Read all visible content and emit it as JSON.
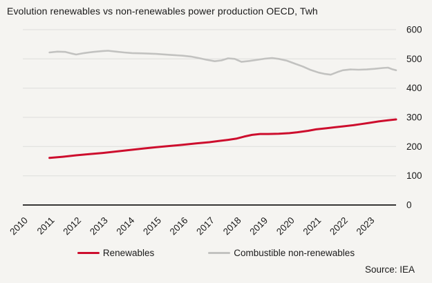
{
  "title": "Evolution renewables vs non-renewables power production OECD, Twh",
  "source": "Source: IEA",
  "legend": {
    "renewables": "Renewables",
    "non_renewables": "Combustible non-renewables"
  },
  "colors": {
    "background": "#f5f4f1",
    "text": "#1a1a1a",
    "grid": "#dddddb",
    "axis": "#1a1a1a",
    "renewables": "#cd0d2d",
    "non_renewables": "#c2c2c0"
  },
  "chart_data": {
    "type": "line",
    "title": "Evolution renewables vs non-renewables power production OECD, Twh",
    "unit": "Twh",
    "xlabel": "",
    "ylabel": "",
    "xlim": [
      2010,
      2024
    ],
    "ylim": [
      0,
      600
    ],
    "x_ticks": [
      2010,
      2011,
      2012,
      2013,
      2014,
      2015,
      2016,
      2017,
      2018,
      2019,
      2020,
      2021,
      2022,
      2023
    ],
    "y_ticks": [
      0,
      100,
      200,
      300,
      400,
      500,
      600
    ],
    "grid": "horizontal",
    "legend_position": "bottom",
    "series": [
      {
        "name": "Renewables",
        "color_key": "renewables",
        "width": 3,
        "points": [
          [
            2011.0,
            161
          ],
          [
            2011.5,
            165
          ],
          [
            2012.0,
            170
          ],
          [
            2012.5,
            174
          ],
          [
            2013.0,
            178
          ],
          [
            2013.5,
            183
          ],
          [
            2014.0,
            188
          ],
          [
            2014.5,
            193
          ],
          [
            2015.0,
            198
          ],
          [
            2015.5,
            202
          ],
          [
            2016.0,
            206
          ],
          [
            2016.5,
            211
          ],
          [
            2017.0,
            215
          ],
          [
            2017.35,
            219
          ],
          [
            2017.7,
            223
          ],
          [
            2018.0,
            227
          ],
          [
            2018.3,
            234
          ],
          [
            2018.6,
            240
          ],
          [
            2018.9,
            243
          ],
          [
            2019.2,
            243
          ],
          [
            2019.6,
            244
          ],
          [
            2020.0,
            246
          ],
          [
            2020.3,
            249
          ],
          [
            2020.7,
            254
          ],
          [
            2021.0,
            259
          ],
          [
            2021.4,
            263
          ],
          [
            2021.7,
            266
          ],
          [
            2022.0,
            269
          ],
          [
            2022.4,
            273
          ],
          [
            2022.7,
            277
          ],
          [
            2023.0,
            281
          ],
          [
            2023.35,
            286
          ],
          [
            2023.7,
            290
          ],
          [
            2024.0,
            293
          ]
        ]
      },
      {
        "name": "Combustible non-renewables",
        "color_key": "non_renewables",
        "width": 2.6,
        "points": [
          [
            2011.0,
            522
          ],
          [
            2011.3,
            525
          ],
          [
            2011.6,
            524
          ],
          [
            2011.85,
            518
          ],
          [
            2012.0,
            515
          ],
          [
            2012.3,
            520
          ],
          [
            2012.65,
            524
          ],
          [
            2013.0,
            527
          ],
          [
            2013.2,
            528
          ],
          [
            2013.5,
            525
          ],
          [
            2013.8,
            522
          ],
          [
            2014.1,
            520
          ],
          [
            2014.5,
            519
          ],
          [
            2015.0,
            517
          ],
          [
            2015.5,
            514
          ],
          [
            2016.0,
            511
          ],
          [
            2016.3,
            508
          ],
          [
            2016.6,
            503
          ],
          [
            2016.9,
            497
          ],
          [
            2017.2,
            492
          ],
          [
            2017.45,
            495
          ],
          [
            2017.7,
            502
          ],
          [
            2017.95,
            500
          ],
          [
            2018.2,
            490
          ],
          [
            2018.5,
            493
          ],
          [
            2018.8,
            497
          ],
          [
            2019.1,
            501
          ],
          [
            2019.35,
            503
          ],
          [
            2019.6,
            500
          ],
          [
            2019.9,
            494
          ],
          [
            2020.2,
            484
          ],
          [
            2020.5,
            474
          ],
          [
            2020.8,
            462
          ],
          [
            2021.1,
            453
          ],
          [
            2021.3,
            449
          ],
          [
            2021.55,
            446
          ],
          [
            2021.8,
            455
          ],
          [
            2022.0,
            461
          ],
          [
            2022.3,
            464
          ],
          [
            2022.6,
            463
          ],
          [
            2022.9,
            464
          ],
          [
            2023.2,
            466
          ],
          [
            2023.5,
            469
          ],
          [
            2023.7,
            470
          ],
          [
            2023.85,
            465
          ],
          [
            2024.0,
            461
          ]
        ]
      }
    ]
  }
}
